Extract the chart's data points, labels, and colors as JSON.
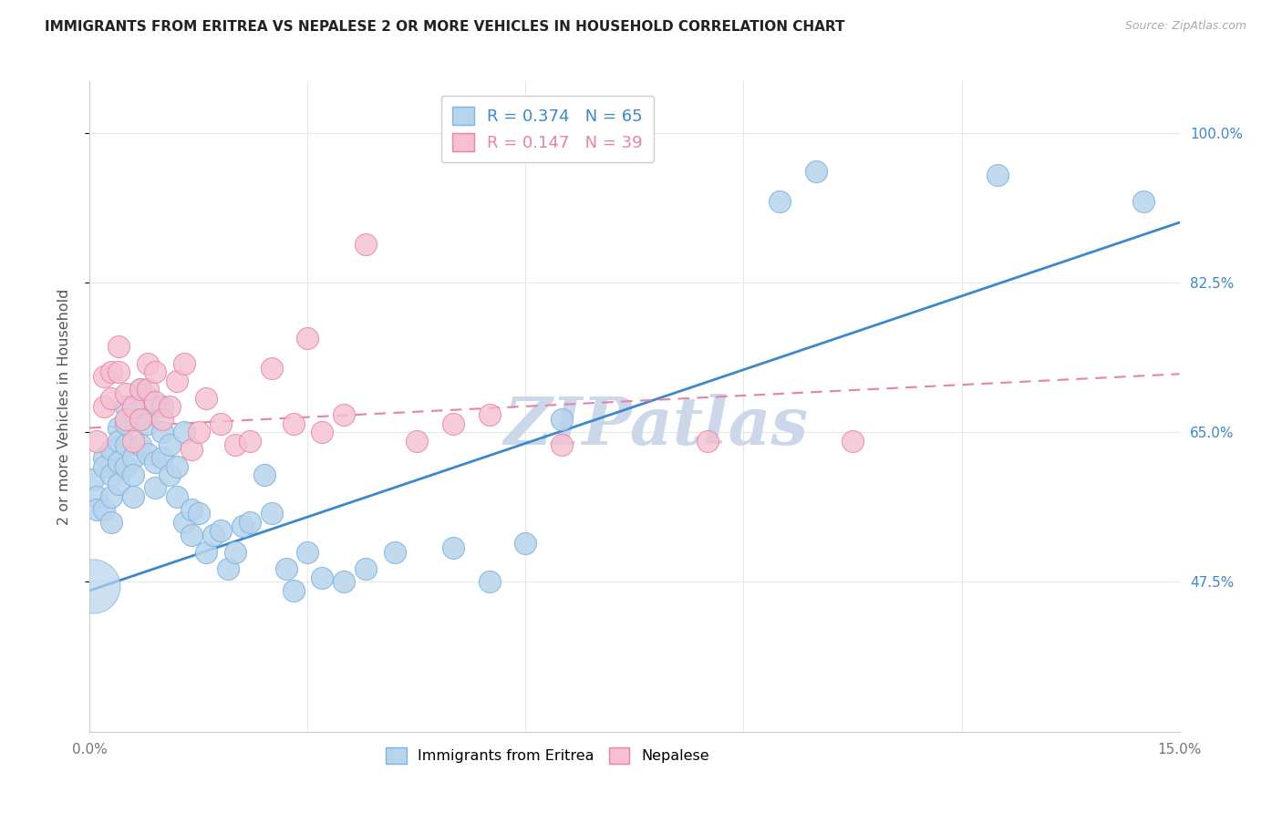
{
  "title": "IMMIGRANTS FROM ERITREA VS NEPALESE 2 OR MORE VEHICLES IN HOUSEHOLD CORRELATION CHART",
  "source": "Source: ZipAtlas.com",
  "ylabel": "2 or more Vehicles in Household",
  "legend_label_blue": "Immigrants from Eritrea",
  "legend_label_pink": "Nepalese",
  "R_blue": 0.374,
  "N_blue": 65,
  "R_pink": 0.147,
  "N_pink": 39,
  "xmin": 0.0,
  "xmax": 0.15,
  "ymin": 0.3,
  "ymax": 1.06,
  "xticks": [
    0.0,
    0.03,
    0.06,
    0.09,
    0.12,
    0.15
  ],
  "xticklabels": [
    "0.0%",
    "",
    "",
    "",
    "",
    "15.0%"
  ],
  "ytick_positions": [
    0.475,
    0.65,
    0.825,
    1.0
  ],
  "right_ytick_labels": [
    "47.5%",
    "65.0%",
    "82.5%",
    "100.0%"
  ],
  "blue_color": "#b8d4ec",
  "blue_edge_color": "#7fb3e0",
  "blue_line_color": "#3d87cc",
  "pink_color": "#f5c0d0",
  "pink_edge_color": "#e882a8",
  "pink_line_color": "#e882a8",
  "background_color": "#ffffff",
  "grid_color": "#e8e8e8",
  "title_color": "#222222",
  "source_color": "#aaaaaa",
  "axis_color": "#cccccc",
  "blue_scatter_x": [
    0.0005,
    0.001,
    0.001,
    0.002,
    0.002,
    0.002,
    0.003,
    0.003,
    0.003,
    0.003,
    0.004,
    0.004,
    0.004,
    0.004,
    0.005,
    0.005,
    0.005,
    0.005,
    0.006,
    0.006,
    0.006,
    0.007,
    0.007,
    0.007,
    0.008,
    0.008,
    0.008,
    0.009,
    0.009,
    0.01,
    0.01,
    0.01,
    0.011,
    0.011,
    0.012,
    0.012,
    0.013,
    0.013,
    0.014,
    0.014,
    0.015,
    0.016,
    0.017,
    0.018,
    0.019,
    0.02,
    0.021,
    0.022,
    0.024,
    0.025,
    0.027,
    0.028,
    0.03,
    0.032,
    0.035,
    0.038,
    0.042,
    0.05,
    0.055,
    0.06,
    0.065,
    0.095,
    0.1,
    0.125,
    0.145
  ],
  "blue_scatter_y": [
    0.595,
    0.575,
    0.56,
    0.62,
    0.61,
    0.56,
    0.63,
    0.6,
    0.575,
    0.545,
    0.655,
    0.64,
    0.615,
    0.59,
    0.68,
    0.66,
    0.635,
    0.61,
    0.62,
    0.6,
    0.575,
    0.7,
    0.665,
    0.635,
    0.69,
    0.66,
    0.625,
    0.615,
    0.585,
    0.68,
    0.65,
    0.62,
    0.635,
    0.6,
    0.61,
    0.575,
    0.65,
    0.545,
    0.56,
    0.53,
    0.555,
    0.51,
    0.53,
    0.535,
    0.49,
    0.51,
    0.54,
    0.545,
    0.6,
    0.555,
    0.49,
    0.465,
    0.51,
    0.48,
    0.475,
    0.49,
    0.51,
    0.515,
    0.475,
    0.52,
    0.665,
    0.92,
    0.955,
    0.95,
    0.92
  ],
  "blue_large_x": [
    0.0005
  ],
  "blue_large_y": [
    0.47
  ],
  "blue_large_size": 1800,
  "pink_scatter_x": [
    0.001,
    0.002,
    0.002,
    0.003,
    0.003,
    0.004,
    0.004,
    0.005,
    0.005,
    0.006,
    0.006,
    0.007,
    0.007,
    0.008,
    0.008,
    0.009,
    0.009,
    0.01,
    0.011,
    0.012,
    0.013,
    0.014,
    0.015,
    0.016,
    0.018,
    0.02,
    0.022,
    0.025,
    0.028,
    0.03,
    0.032,
    0.035,
    0.038,
    0.045,
    0.05,
    0.055,
    0.065,
    0.085,
    0.105
  ],
  "pink_scatter_y": [
    0.64,
    0.715,
    0.68,
    0.72,
    0.69,
    0.75,
    0.72,
    0.695,
    0.665,
    0.68,
    0.64,
    0.7,
    0.665,
    0.73,
    0.7,
    0.72,
    0.685,
    0.665,
    0.68,
    0.71,
    0.73,
    0.63,
    0.65,
    0.69,
    0.66,
    0.635,
    0.64,
    0.725,
    0.66,
    0.76,
    0.65,
    0.67,
    0.87,
    0.64,
    0.66,
    0.67,
    0.635,
    0.64,
    0.64
  ],
  "blue_trend_x": [
    0.0,
    0.15
  ],
  "blue_trend_y": [
    0.465,
    0.895
  ],
  "pink_trend_x": [
    0.0,
    0.15
  ],
  "pink_trend_y": [
    0.655,
    0.718
  ],
  "point_size": 300,
  "watermark": "ZIPatlas",
  "watermark_color": "#ccd8ea",
  "watermark_fontsize": 52
}
